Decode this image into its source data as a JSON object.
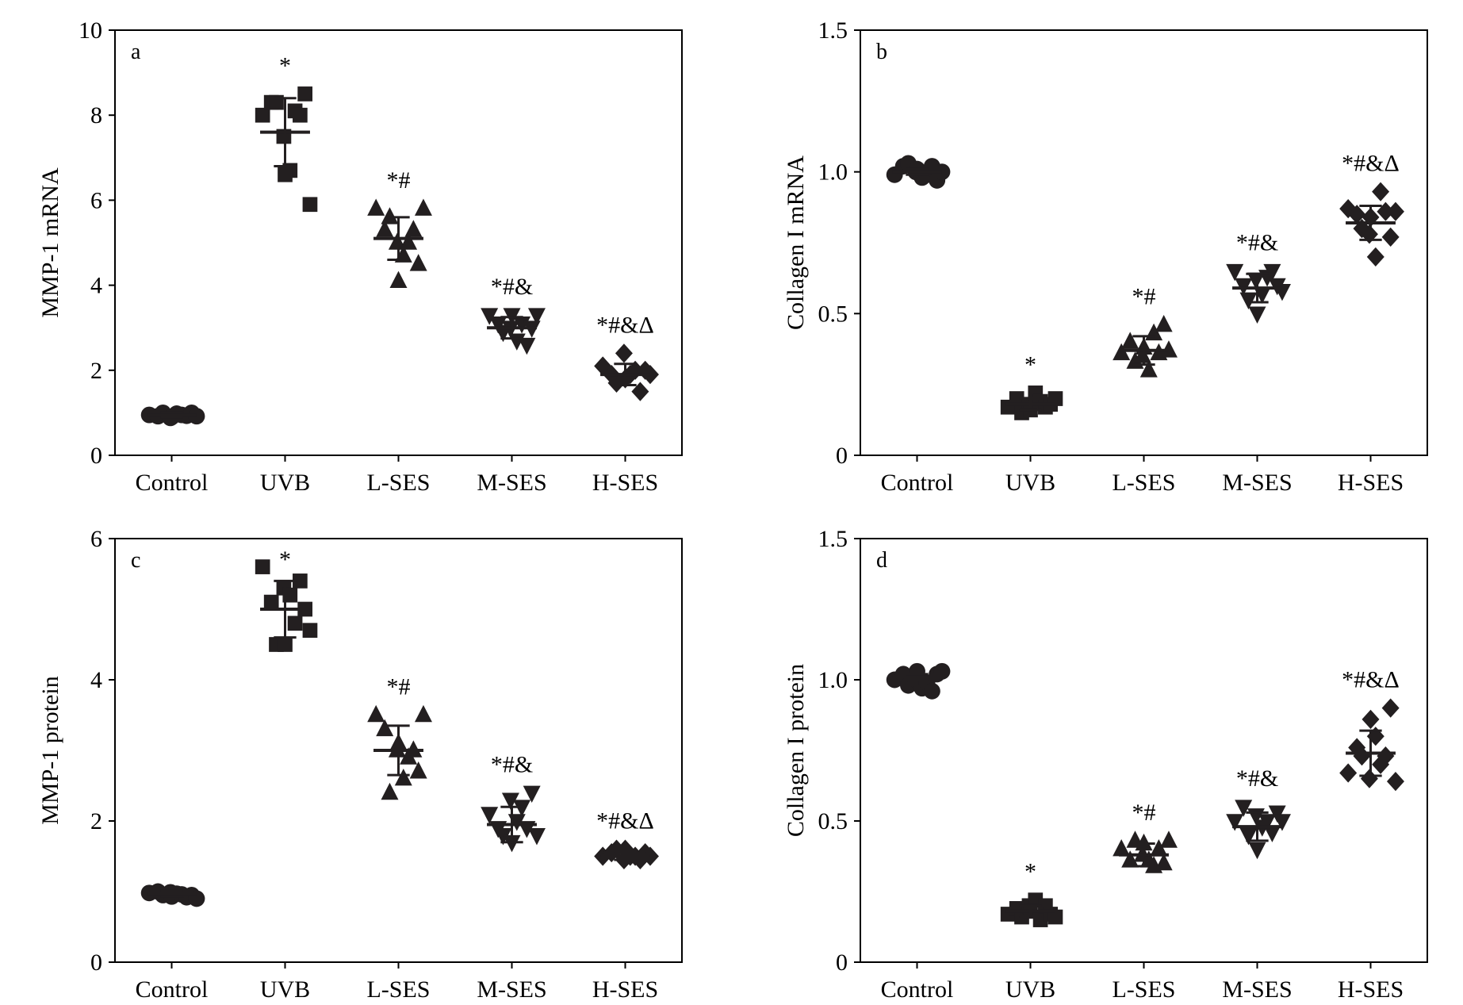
{
  "figure": {
    "marker_color": "#231f20"
  },
  "chart_data": [
    {
      "type": "scatter",
      "panel": "a",
      "ylabel": "MMP-1 mRNA",
      "ylim": [
        0,
        10
      ],
      "yticks": [
        "0",
        "2",
        "4",
        "6",
        "8",
        "10"
      ],
      "categories": [
        "Control",
        "UVB",
        "L-SES",
        "M-SES",
        "H-SES"
      ],
      "markers": [
        "circle",
        "square",
        "triangle-up",
        "triangle-down",
        "diamond"
      ],
      "significance": [
        "",
        "*",
        "*#",
        "*#&",
        "*#&Δ"
      ],
      "means": [
        0.95,
        7.6,
        5.1,
        3.0,
        1.9
      ],
      "sd": [
        0.05,
        0.8,
        0.5,
        0.25,
        0.25
      ],
      "points": [
        [
          0.95,
          0.92,
          1.0,
          0.88,
          0.98,
          0.9,
          0.95,
          0.93,
          1.0,
          0.92
        ],
        [
          8.0,
          8.3,
          8.3,
          7.5,
          6.7,
          6.6,
          8.1,
          8.0,
          8.5,
          5.9
        ],
        [
          5.8,
          5.3,
          5.6,
          5.0,
          4.7,
          4.1,
          5.0,
          5.3,
          4.5,
          5.8
        ],
        [
          3.3,
          3.1,
          2.9,
          3.0,
          2.7,
          3.3,
          3.1,
          2.6,
          3.0,
          3.3
        ],
        [
          2.1,
          1.9,
          1.7,
          2.4,
          1.9,
          1.8,
          2.0,
          1.5,
          2.0,
          1.9
        ]
      ]
    },
    {
      "type": "scatter",
      "panel": "b",
      "ylabel": "Collagen I mRNA",
      "ylim": [
        0,
        1.5
      ],
      "yticks": [
        "0",
        "0.5",
        "1.0",
        "1.5"
      ],
      "categories": [
        "Control",
        "UVB",
        "L-SES",
        "M-SES",
        "H-SES"
      ],
      "markers": [
        "circle",
        "square",
        "triangle-up",
        "triangle-down",
        "diamond"
      ],
      "significance": [
        "",
        "*",
        "*#",
        "*#&",
        "*#&Δ"
      ],
      "means": [
        1.0,
        0.18,
        0.37,
        0.59,
        0.82
      ],
      "sd": [
        0.01,
        0.02,
        0.05,
        0.05,
        0.06
      ],
      "points": [
        [
          0.99,
          1.02,
          1.03,
          1.0,
          0.98,
          1.01,
          0.99,
          1.02,
          0.97,
          1.0
        ],
        [
          0.17,
          0.2,
          0.15,
          0.18,
          0.22,
          0.16,
          0.19,
          0.17,
          0.18,
          0.2
        ],
        [
          0.36,
          0.4,
          0.33,
          0.35,
          0.3,
          0.38,
          0.43,
          0.36,
          0.46,
          0.37
        ],
        [
          0.65,
          0.6,
          0.55,
          0.62,
          0.57,
          0.5,
          0.63,
          0.65,
          0.6,
          0.58
        ],
        [
          0.87,
          0.85,
          0.8,
          0.78,
          0.7,
          0.84,
          0.93,
          0.86,
          0.77,
          0.86
        ]
      ]
    },
    {
      "type": "scatter",
      "panel": "c",
      "ylabel": "MMP-1  protein",
      "ylim": [
        0,
        6
      ],
      "yticks": [
        "0",
        "2",
        "4",
        "6"
      ],
      "categories": [
        "Control",
        "UVB",
        "L-SES",
        "M-SES",
        "H-SES"
      ],
      "markers": [
        "circle",
        "square",
        "triangle-up",
        "triangle-down",
        "diamond"
      ],
      "significance": [
        "",
        "*",
        "*#",
        "*#&",
        "*#&Δ"
      ],
      "means": [
        0.97,
        5.0,
        3.0,
        1.95,
        1.5
      ],
      "sd": [
        0.04,
        0.4,
        0.35,
        0.25,
        0.05
      ],
      "points": [
        [
          0.98,
          1.0,
          0.95,
          0.99,
          0.97,
          0.93,
          0.96,
          0.92,
          0.95,
          0.9
        ],
        [
          5.6,
          5.1,
          4.5,
          5.3,
          5.2,
          4.5,
          4.8,
          5.4,
          5.0,
          4.7
        ],
        [
          3.5,
          3.3,
          2.4,
          3.0,
          2.6,
          3.1,
          2.9,
          3.0,
          2.7,
          3.5
        ],
        [
          2.1,
          1.9,
          1.8,
          2.3,
          2.0,
          1.7,
          2.2,
          1.9,
          2.4,
          1.8
        ],
        [
          1.5,
          1.55,
          1.6,
          1.45,
          1.5,
          1.6,
          1.5,
          1.45,
          1.55,
          1.5
        ]
      ]
    },
    {
      "type": "scatter",
      "panel": "d",
      "ylabel": "Collagen I protein",
      "ylim": [
        0,
        1.5
      ],
      "yticks": [
        "0",
        "0.5",
        "1.0",
        "1.5"
      ],
      "categories": [
        "Control",
        "UVB",
        "L-SES",
        "M-SES",
        "H-SES"
      ],
      "markers": [
        "circle",
        "square",
        "triangle-up",
        "triangle-down",
        "diamond"
      ],
      "significance": [
        "",
        "*",
        "*#",
        "*#&",
        "*#&Δ"
      ],
      "means": [
        1.01,
        0.18,
        0.38,
        0.48,
        0.74
      ],
      "sd": [
        0.01,
        0.02,
        0.04,
        0.05,
        0.08
      ],
      "points": [
        [
          1.0,
          1.02,
          0.98,
          1.0,
          0.97,
          1.03,
          0.99,
          0.96,
          1.02,
          1.03
        ],
        [
          0.17,
          0.19,
          0.16,
          0.2,
          0.22,
          0.18,
          0.15,
          0.2,
          0.17,
          0.16
        ],
        [
          0.4,
          0.36,
          0.43,
          0.38,
          0.36,
          0.42,
          0.34,
          0.4,
          0.35,
          0.43
        ],
        [
          0.5,
          0.55,
          0.45,
          0.52,
          0.48,
          0.4,
          0.5,
          0.46,
          0.53,
          0.5
        ],
        [
          0.67,
          0.76,
          0.73,
          0.65,
          0.8,
          0.86,
          0.7,
          0.73,
          0.9,
          0.64
        ]
      ]
    }
  ]
}
